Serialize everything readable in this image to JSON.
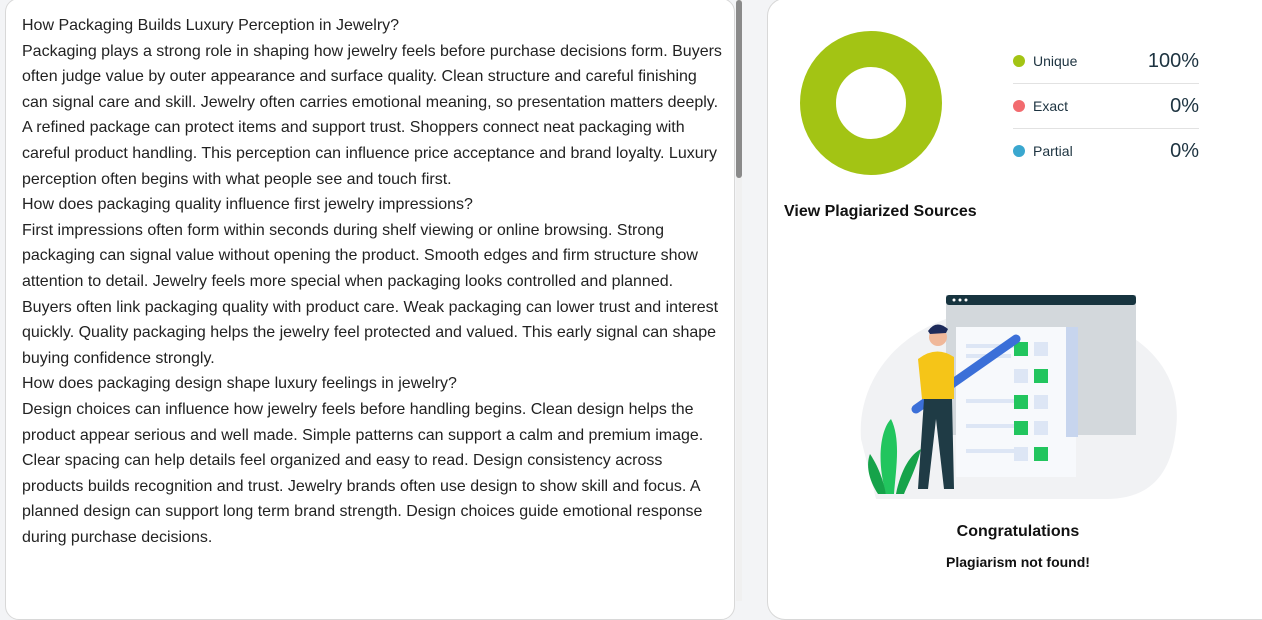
{
  "document": {
    "paragraphs": [
      "How Packaging Builds Luxury Perception in Jewelry?",
      "Packaging plays a strong role in shaping how jewelry feels before purchase decisions form. Buyers often judge value by outer appearance and surface quality. Clean structure and careful finishing can signal care and skill. Jewelry often carries emotional meaning, so presentation matters deeply. A refined package can protect items and support trust. Shoppers connect neat packaging with careful product handling. This perception can influence price acceptance and brand loyalty. Luxury perception often begins with what people see and touch first.",
      "How does packaging quality influence first jewelry impressions?",
      "First impressions often form within seconds during shelf viewing or online browsing. Strong packaging can signal value without opening the product. Smooth edges and firm structure show attention to detail. Jewelry feels more special when packaging looks controlled and planned. Buyers often link packaging quality with product care. Weak packaging can lower trust and interest quickly. Quality packaging helps the jewelry feel protected and valued. This early signal can shape buying confidence strongly.",
      "How does packaging design shape luxury feelings in jewelry?",
      "Design choices can influence how jewelry feels before handling begins. Clean design helps the product appear serious and well made. Simple patterns can support a calm and premium image. Clear spacing can help details feel organized and easy to read. Design consistency across products builds recognition and trust. Jewelry brands often use design to show skill and focus. A planned design can support long term brand strength. Design choices guide emotional response during purchase decisions."
    ]
  },
  "results": {
    "legend": [
      {
        "label": "Unique",
        "value": "100%",
        "color": "#a3c414"
      },
      {
        "label": "Exact",
        "value": "0%",
        "color": "#f26b6f"
      },
      {
        "label": "Partial",
        "value": "0%",
        "color": "#3aa7cf"
      }
    ],
    "chart_values": {
      "unique": 100,
      "exact": 0,
      "partial": 0
    },
    "sources_title": "View Plagiarized Sources",
    "congrats_title": "Congratulations",
    "congrats_message": "Plagiarism not found!"
  }
}
